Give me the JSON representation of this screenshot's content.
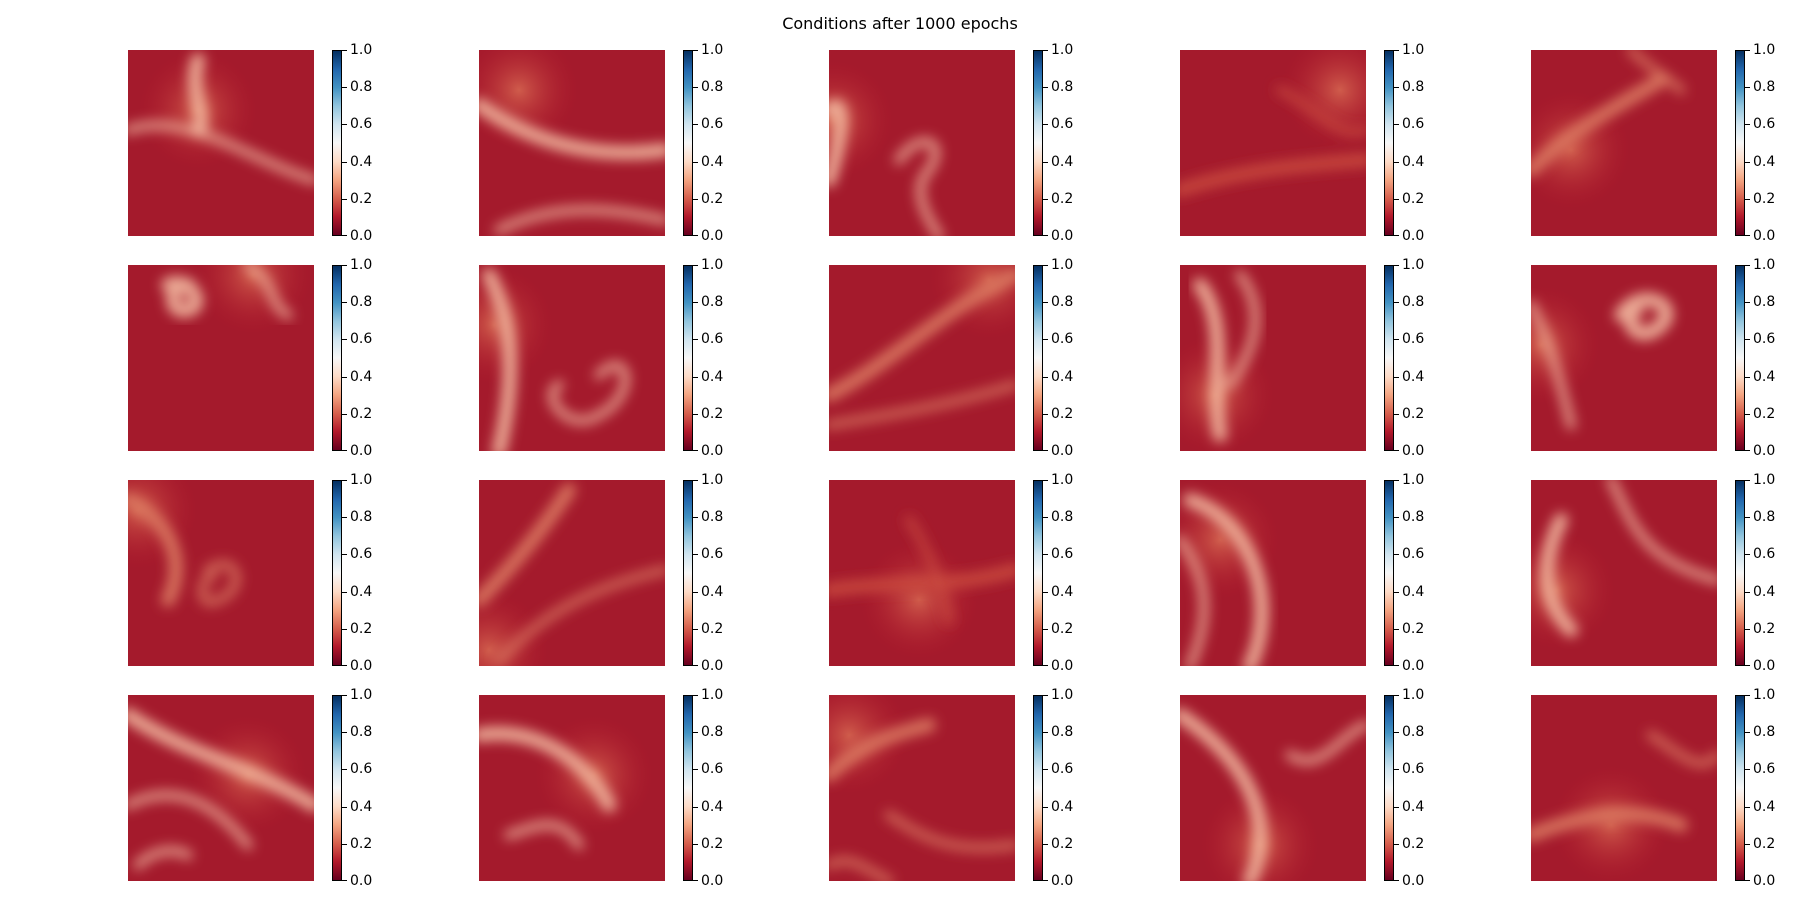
{
  "title": "Conditions after 1000 epochs",
  "colormap": {
    "name": "RdBu",
    "stops": [
      "#67001f",
      "#b2182b",
      "#d6604d",
      "#f4a582",
      "#fddbc7",
      "#f7f7f7",
      "#d1e5f0",
      "#92c5de",
      "#4393c3",
      "#2166ac",
      "#053061"
    ]
  },
  "chart_data": {
    "type": "heatmap",
    "title": "Conditions after 1000 epochs",
    "grid": {
      "rows": 4,
      "cols": 5
    },
    "colorbar": {
      "vmin": 0.0,
      "vmax": 1.0,
      "ticks": [
        "0.0",
        "0.2",
        "0.4",
        "0.6",
        "0.8",
        "1.0"
      ]
    },
    "panels": [
      {
        "row": 1,
        "col": 1,
        "value_range": [
          0.0,
          0.45
        ]
      },
      {
        "row": 1,
        "col": 2,
        "value_range": [
          0.0,
          0.45
        ]
      },
      {
        "row": 1,
        "col": 3,
        "value_range": [
          0.0,
          0.45
        ]
      },
      {
        "row": 1,
        "col": 4,
        "value_range": [
          0.0,
          0.25
        ]
      },
      {
        "row": 1,
        "col": 5,
        "value_range": [
          0.0,
          0.3
        ]
      },
      {
        "row": 2,
        "col": 1,
        "value_range": [
          0.0,
          0.5
        ]
      },
      {
        "row": 2,
        "col": 2,
        "value_range": [
          0.0,
          0.5
        ]
      },
      {
        "row": 2,
        "col": 3,
        "value_range": [
          0.0,
          0.35
        ]
      },
      {
        "row": 2,
        "col": 4,
        "value_range": [
          0.0,
          0.4
        ]
      },
      {
        "row": 2,
        "col": 5,
        "value_range": [
          0.0,
          0.45
        ]
      },
      {
        "row": 3,
        "col": 1,
        "value_range": [
          0.0,
          0.3
        ]
      },
      {
        "row": 3,
        "col": 2,
        "value_range": [
          0.0,
          0.3
        ]
      },
      {
        "row": 3,
        "col": 3,
        "value_range": [
          0.0,
          0.2
        ]
      },
      {
        "row": 3,
        "col": 4,
        "value_range": [
          0.0,
          0.45
        ]
      },
      {
        "row": 3,
        "col": 5,
        "value_range": [
          0.0,
          0.45
        ]
      },
      {
        "row": 4,
        "col": 1,
        "value_range": [
          0.0,
          0.45
        ]
      },
      {
        "row": 4,
        "col": 2,
        "value_range": [
          0.0,
          0.45
        ]
      },
      {
        "row": 4,
        "col": 3,
        "value_range": [
          0.0,
          0.35
        ]
      },
      {
        "row": 4,
        "col": 4,
        "value_range": [
          0.0,
          0.45
        ]
      },
      {
        "row": 4,
        "col": 5,
        "value_range": [
          0.0,
          0.3
        ]
      }
    ]
  }
}
